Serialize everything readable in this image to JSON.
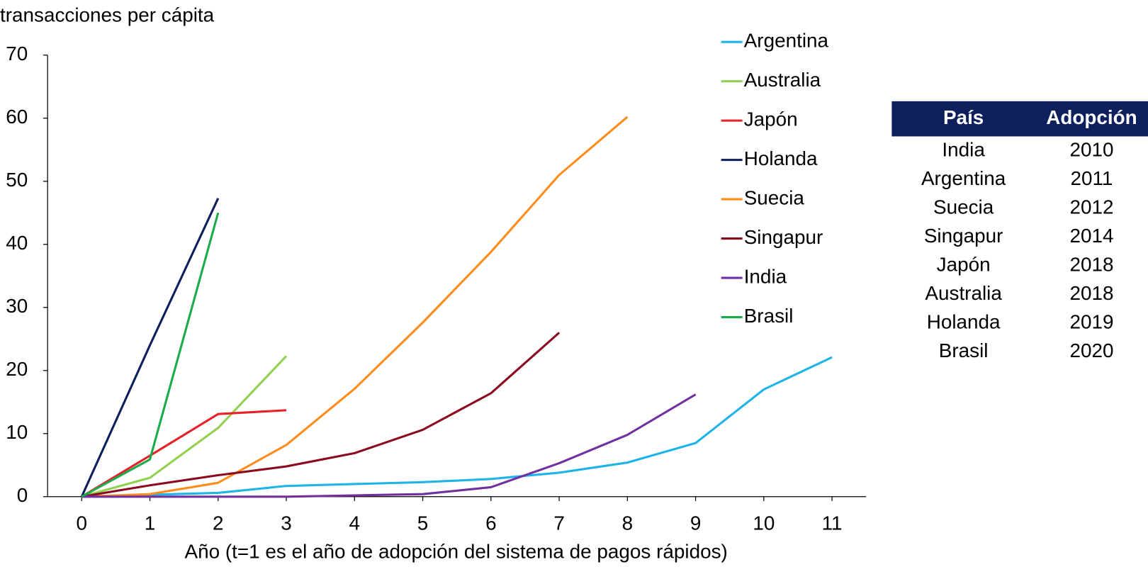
{
  "chart_data": {
    "type": "line",
    "y_label": "transacciones per cápita",
    "x_label": "Año (t=1 es el año de adopción del sistema de pagos rápidos)",
    "x": [
      0,
      1,
      2,
      3,
      4,
      5,
      6,
      7,
      8,
      9,
      10,
      11
    ],
    "xlim": [
      -0.5,
      11.5
    ],
    "xticks": [
      0,
      1,
      2,
      3,
      4,
      5,
      6,
      7,
      8,
      9,
      10,
      11
    ],
    "ylim": [
      0,
      70
    ],
    "yticks": [
      0,
      10,
      20,
      30,
      40,
      50,
      60,
      70
    ],
    "legend": "right",
    "series": [
      {
        "name": "Argentina",
        "color": "#1fb4e8",
        "values": [
          0,
          0.3,
          0.6,
          1.7,
          2.0,
          2.3,
          2.8,
          3.8,
          5.4,
          8.5,
          17,
          22.1
        ]
      },
      {
        "name": "Australia",
        "color": "#92d050",
        "values": [
          0,
          3,
          10.9,
          22.3,
          null,
          null,
          null,
          null,
          null,
          null,
          null,
          null
        ]
      },
      {
        "name": "Japón",
        "color": "#e8202a",
        "values": [
          0,
          6.5,
          13.1,
          13.7,
          null,
          null,
          null,
          null,
          null,
          null,
          null,
          null
        ]
      },
      {
        "name": "Holanda",
        "color": "#0d1f5c",
        "values": [
          0,
          24,
          47.3,
          null,
          null,
          null,
          null,
          null,
          null,
          null,
          null,
          null
        ]
      },
      {
        "name": "Suecia",
        "color": "#ff8c1a",
        "values": [
          0,
          0.4,
          2.2,
          8.2,
          17.1,
          27.6,
          38.8,
          51,
          60.2,
          null,
          null,
          null
        ]
      },
      {
        "name": "Singapur",
        "color": "#8b0a1e",
        "values": [
          0,
          1.8,
          3.4,
          4.8,
          6.9,
          10.6,
          16.4,
          26,
          null,
          null,
          null,
          null
        ]
      },
      {
        "name": "India",
        "color": "#7030a0",
        "values": [
          0,
          0,
          0,
          0,
          0.2,
          0.4,
          1.5,
          5.3,
          9.8,
          16.2,
          null,
          null
        ]
      },
      {
        "name": "Brasil",
        "color": "#1aab4a",
        "values": [
          0,
          5.9,
          45,
          null,
          null,
          null,
          null,
          null,
          null,
          null,
          null,
          null
        ]
      }
    ]
  },
  "table": {
    "header": [
      "País",
      "Adopción"
    ],
    "rows": [
      [
        "India",
        "2010"
      ],
      [
        "Argentina",
        "2011"
      ],
      [
        "Suecia",
        "2012"
      ],
      [
        "Singapur",
        "2014"
      ],
      [
        "Japón",
        "2018"
      ],
      [
        "Australia",
        "2018"
      ],
      [
        "Holanda",
        "2019"
      ],
      [
        "Brasil",
        "2020"
      ]
    ]
  }
}
